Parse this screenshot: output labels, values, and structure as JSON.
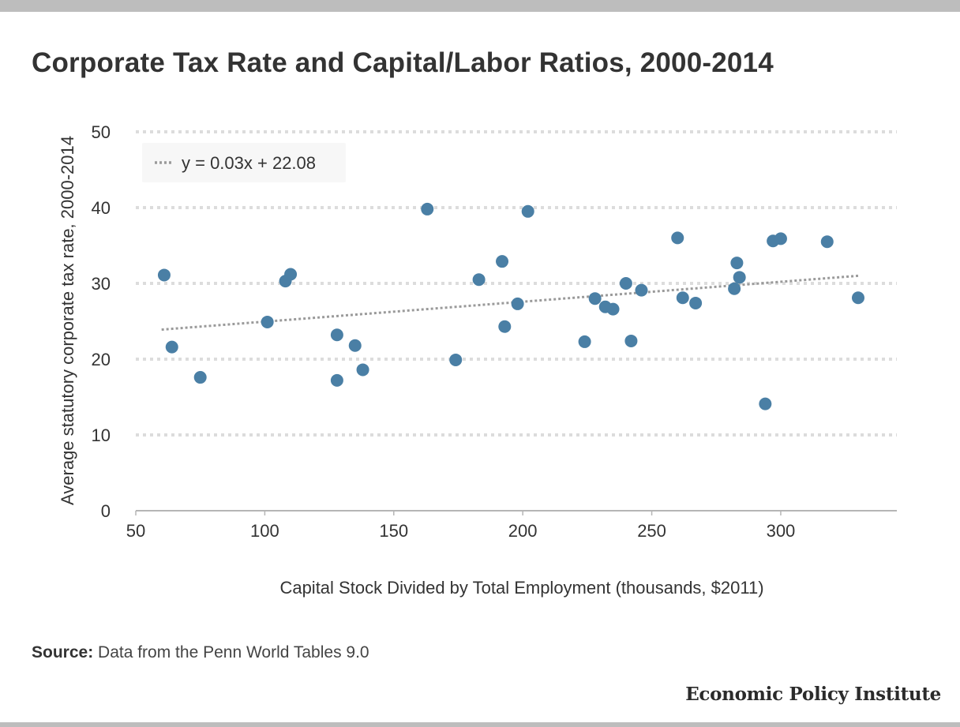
{
  "chart_data": {
    "type": "scatter",
    "title": "Corporate Tax Rate and Capital/Labor Ratios, 2000-2014",
    "xlabel": "Capital Stock Divided by Total Employment (thousands, $2011)",
    "ylabel": "Average statutory corporate tax rate, 2000-2014",
    "xlim": [
      50,
      345
    ],
    "ylim": [
      0,
      50
    ],
    "xticks": [
      "50",
      "100",
      "150",
      "200",
      "250",
      "300"
    ],
    "yticks": [
      "0",
      "10",
      "20",
      "30",
      "40",
      "50"
    ],
    "grid": "horizontal dotted",
    "legend": {
      "position": "top-left",
      "label": "y = 0.03x + 22.08"
    },
    "trendline": {
      "x": [
        60,
        330
      ],
      "y": [
        23.9,
        31.0
      ]
    },
    "point_color": "#4a7fa5",
    "points": [
      {
        "x": 61,
        "y": 31.1
      },
      {
        "x": 64,
        "y": 21.6
      },
      {
        "x": 75,
        "y": 17.6
      },
      {
        "x": 101,
        "y": 24.9
      },
      {
        "x": 108,
        "y": 30.3
      },
      {
        "x": 110,
        "y": 31.2
      },
      {
        "x": 128,
        "y": 23.2
      },
      {
        "x": 128,
        "y": 17.2
      },
      {
        "x": 135,
        "y": 21.8
      },
      {
        "x": 138,
        "y": 18.6
      },
      {
        "x": 163,
        "y": 39.8
      },
      {
        "x": 174,
        "y": 19.9
      },
      {
        "x": 183,
        "y": 30.5
      },
      {
        "x": 192,
        "y": 32.9
      },
      {
        "x": 193,
        "y": 24.3
      },
      {
        "x": 198,
        "y": 27.3
      },
      {
        "x": 202,
        "y": 39.5
      },
      {
        "x": 224,
        "y": 22.3
      },
      {
        "x": 228,
        "y": 28.0
      },
      {
        "x": 232,
        "y": 26.9
      },
      {
        "x": 235,
        "y": 26.6
      },
      {
        "x": 240,
        "y": 30.0
      },
      {
        "x": 242,
        "y": 22.4
      },
      {
        "x": 246,
        "y": 29.1
      },
      {
        "x": 260,
        "y": 36.0
      },
      {
        "x": 262,
        "y": 28.1
      },
      {
        "x": 267,
        "y": 27.4
      },
      {
        "x": 282,
        "y": 29.3
      },
      {
        "x": 283,
        "y": 32.7
      },
      {
        "x": 284,
        "y": 30.8
      },
      {
        "x": 294,
        "y": 14.1
      },
      {
        "x": 297,
        "y": 35.6
      },
      {
        "x": 300,
        "y": 35.9
      },
      {
        "x": 318,
        "y": 35.5
      },
      {
        "x": 330,
        "y": 28.1
      }
    ]
  },
  "footer": {
    "source_label": "Source:",
    "source_text": "Data from the Penn World Tables 9.0",
    "brand": "Economic Policy Institute"
  }
}
